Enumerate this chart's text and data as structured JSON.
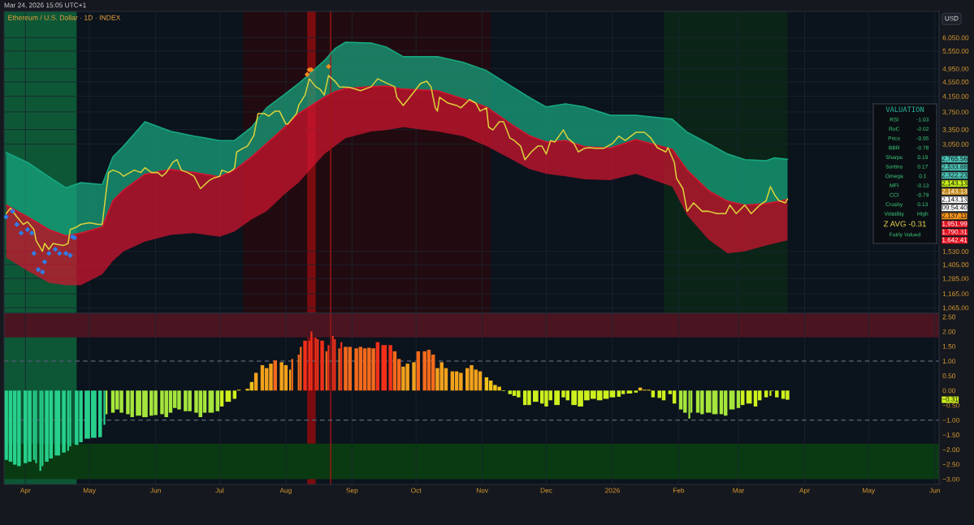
{
  "chart_data": [
    {
      "type": "line",
      "title": "Ethereum / U.S. Dollar · 1D · INDEX",
      "subtitle": "Mar 24, 2026 15:05 UTC+1",
      "ylabel": "USD",
      "log": true,
      "grid": true,
      "tick_labels": "y",
      "xlim": [
        "2025-03-22",
        "2026-06-03"
      ],
      "xticks": [
        {
          "value": "2025-04-01",
          "label": null
        },
        {
          "value": "2025-05-01",
          "label": null
        },
        {
          "value": "2025-06-01",
          "label": null
        },
        {
          "value": "2025-07-01",
          "label": null
        },
        {
          "value": "2025-08-01",
          "label": null
        },
        {
          "value": "2025-09-01",
          "label": null
        },
        {
          "value": "2025-10-01",
          "label": null
        },
        {
          "value": "2025-11-01",
          "label": null
        },
        {
          "value": "2025-12-01",
          "label": null
        },
        {
          "value": "2026-01-01",
          "label": null
        },
        {
          "value": "2026-02-01",
          "label": null
        },
        {
          "value": "2026-03-01",
          "label": null
        },
        {
          "value": "2026-04-01",
          "label": null
        },
        {
          "value": "2026-05-01",
          "label": null
        },
        {
          "value": "2026-06-01",
          "label": null
        }
      ],
      "ylim": [
        1028,
        7160
      ],
      "yticks": [
        {
          "value": 1065,
          "label": "1,065.00"
        },
        {
          "value": 1165,
          "label": "1,165.00"
        },
        {
          "value": 1285,
          "label": "1,285.00"
        },
        {
          "value": 1405,
          "label": "1,405.00"
        },
        {
          "value": 1530,
          "label": "1,530.00"
        },
        {
          "value": 3050,
          "label": "3,050.00"
        },
        {
          "value": 3350,
          "label": "3,350.00"
        },
        {
          "value": 3750,
          "label": "3,750.00"
        },
        {
          "value": 4150,
          "label": "4,150.00"
        },
        {
          "value": 4550,
          "label": "4,550.00"
        },
        {
          "value": 4950,
          "label": "4,950.00"
        },
        {
          "value": 5550,
          "label": "5,550.00"
        },
        {
          "value": 6050,
          "label": "6,050.00"
        }
      ],
      "series": [
        {
          "type": "line",
          "color": "#17a67f",
          "x": [
            "2025-03-23",
            "2025-04-02",
            "2025-04-12",
            "2025-04-20",
            "2025-04-27",
            "2025-05-07",
            "2025-05-12",
            "2025-05-17",
            "2025-05-27",
            "2025-06-08",
            "2025-06-19",
            "2025-07-01",
            "2025-07-08",
            "2025-07-16",
            "2025-07-23",
            "2025-07-31",
            "2025-08-07",
            "2025-08-19",
            "2025-08-24",
            "2025-08-29",
            "2025-09-10",
            "2025-09-17",
            "2025-09-25",
            "2025-10-11",
            "2025-10-23",
            "2025-11-03",
            "2025-11-15",
            "2025-11-23",
            "2025-12-01",
            "2025-12-10",
            "2025-12-19",
            "2025-12-31",
            "2026-01-12",
            "2026-01-29",
            "2026-02-05",
            "2026-02-15",
            "2026-02-24",
            "2026-03-04",
            "2026-03-14",
            "2026-03-18",
            "2026-03-24"
          ],
          "values": [
            2890,
            2710,
            2470,
            2300,
            2380,
            2350,
            2810,
            3010,
            3520,
            3310,
            3210,
            3120,
            3120,
            3400,
            3850,
            4180,
            4500,
            5210,
            5630,
            5870,
            5840,
            5690,
            5350,
            5350,
            5160,
            4890,
            4410,
            4120,
            3870,
            3950,
            3870,
            3670,
            3670,
            3580,
            3290,
            3060,
            2860,
            2760,
            2740,
            2790,
            2765.56
          ],
          "upper": [
            2890,
            2710,
            2470,
            2300,
            2380,
            2350,
            2810,
            3010,
            3520,
            3310,
            3210,
            3120,
            3120,
            3400,
            3850,
            4180,
            4500,
            5210,
            5630,
            5870,
            5840,
            5690,
            5350,
            5350,
            5160,
            4890,
            4410,
            4120,
            3870,
            3950,
            3870,
            3670,
            3670,
            3580,
            3290,
            3060,
            2860,
            2760,
            2740,
            2790,
            2765.56
          ],
          "lower": [
            2060,
            1910,
            1760,
            1690,
            1720,
            1790,
            2120,
            2270,
            2510,
            2590,
            2540,
            2470,
            2580,
            2810,
            3060,
            3380,
            3710,
            4120,
            4270,
            4360,
            4410,
            4430,
            4340,
            4300,
            4080,
            3870,
            3450,
            3220,
            3090,
            3120,
            3000,
            2970,
            3140,
            2950,
            2580,
            2260,
            2110,
            2060,
            2080,
            2100,
            2137.11
          ]
        },
        {
          "type": "line",
          "color": "#d3152f",
          "x": [
            "2025-03-23",
            "2025-04-02",
            "2025-04-12",
            "2025-04-20",
            "2025-04-27",
            "2025-05-07",
            "2025-05-12",
            "2025-05-17",
            "2025-05-27",
            "2025-06-08",
            "2025-06-19",
            "2025-07-01",
            "2025-07-08",
            "2025-07-16",
            "2025-07-23",
            "2025-07-31",
            "2025-08-07",
            "2025-08-19",
            "2025-08-24",
            "2025-08-29",
            "2025-09-10",
            "2025-09-17",
            "2025-09-25",
            "2025-10-11",
            "2025-10-23",
            "2025-11-03",
            "2025-11-15",
            "2025-11-23",
            "2025-12-01",
            "2025-12-10",
            "2025-12-19",
            "2025-12-31",
            "2026-01-12",
            "2026-01-29",
            "2026-02-05",
            "2026-02-15",
            "2026-02-24",
            "2026-03-04",
            "2026-03-14",
            "2026-03-18",
            "2026-03-24"
          ],
          "values": [
            2060,
            1910,
            1760,
            1690,
            1720,
            1790,
            2120,
            2270,
            2510,
            2590,
            2540,
            2470,
            2580,
            2810,
            3060,
            3380,
            3710,
            4120,
            4270,
            4360,
            4410,
            4430,
            4340,
            4300,
            4080,
            3870,
            3450,
            3220,
            3090,
            3120,
            3000,
            2970,
            3140,
            2950,
            2580,
            2260,
            2110,
            2060,
            2080,
            2100,
            2137.11
          ],
          "upper": [
            2060,
            1910,
            1760,
            1690,
            1720,
            1790,
            2120,
            2270,
            2510,
            2590,
            2540,
            2470,
            2580,
            2810,
            3060,
            3380,
            3710,
            4120,
            4270,
            4360,
            4410,
            4430,
            4340,
            4300,
            4080,
            3870,
            3450,
            3220,
            3090,
            3120,
            3000,
            2970,
            3140,
            2950,
            2580,
            2260,
            2110,
            2060,
            2080,
            2100,
            2137.11
          ],
          "lower": [
            1470,
            1350,
            1250,
            1230,
            1230,
            1320,
            1440,
            1530,
            1630,
            1700,
            1720,
            1680,
            1740,
            1880,
            1980,
            2200,
            2380,
            2860,
            3010,
            3170,
            3310,
            3340,
            3400,
            3310,
            3210,
            3010,
            2760,
            2600,
            2520,
            2480,
            2430,
            2420,
            2520,
            2320,
            1930,
            1650,
            1510,
            1530,
            1590,
            1610,
            1642.41
          ]
        },
        {
          "type": "line",
          "color": "#dcd23a",
          "x": [
            "2025-03-23",
            "2025-03-25",
            "2025-03-28",
            "2025-03-31",
            "2025-04-02",
            "2025-04-05",
            "2025-04-06",
            "2025-04-09",
            "2025-04-10",
            "2025-04-12",
            "2025-04-14",
            "2025-04-16",
            "2025-04-19",
            "2025-04-21",
            "2025-04-22",
            "2025-04-25",
            "2025-04-27",
            "2025-05-01",
            "2025-05-05",
            "2025-05-07",
            "2025-05-09",
            "2025-05-10",
            "2025-05-12",
            "2025-05-15",
            "2025-05-17",
            "2025-05-20",
            "2025-05-22",
            "2025-05-25",
            "2025-05-27",
            "2025-05-30",
            "2025-06-02",
            "2025-06-04",
            "2025-06-06",
            "2025-06-09",
            "2025-06-11",
            "2025-06-13",
            "2025-06-16",
            "2025-06-19",
            "2025-06-22",
            "2025-06-23",
            "2025-06-26",
            "2025-06-28",
            "2025-07-01",
            "2025-07-02",
            "2025-07-05",
            "2025-07-07",
            "2025-07-08",
            "2025-07-09",
            "2025-07-12",
            "2025-07-14",
            "2025-07-17",
            "2025-07-19",
            "2025-07-22",
            "2025-07-24",
            "2025-07-27",
            "2025-07-29",
            "2025-08-01",
            "2025-08-02",
            "2025-08-05",
            "2025-08-06",
            "2025-08-07",
            "2025-08-10",
            "2025-08-12",
            "2025-08-15",
            "2025-08-17",
            "2025-08-19",
            "2025-08-21",
            "2025-08-24",
            "2025-08-26",
            "2025-08-31",
            "2025-09-05",
            "2025-09-10",
            "2025-09-13",
            "2025-09-17",
            "2025-09-21",
            "2025-09-22",
            "2025-09-25",
            "2025-09-28",
            "2025-10-01",
            "2025-10-03",
            "2025-10-06",
            "2025-10-08",
            "2025-10-10",
            "2025-10-11",
            "2025-10-12",
            "2025-10-16",
            "2025-10-20",
            "2025-10-22",
            "2025-10-26",
            "2025-10-29",
            "2025-10-31",
            "2025-11-03",
            "2025-11-04",
            "2025-11-06",
            "2025-11-09",
            "2025-11-11",
            "2025-11-14",
            "2025-11-16",
            "2025-11-19",
            "2025-11-21",
            "2025-11-24",
            "2025-11-27",
            "2025-11-29",
            "2025-12-01",
            "2025-12-03",
            "2025-12-05",
            "2025-12-09",
            "2025-12-11",
            "2025-12-14",
            "2025-12-16",
            "2025-12-19",
            "2025-12-21",
            "2025-12-24",
            "2025-12-28",
            "2026-01-01",
            "2026-01-04",
            "2026-01-07",
            "2026-01-12",
            "2026-01-16",
            "2026-01-19",
            "2026-01-22",
            "2026-01-26",
            "2026-01-27",
            "2026-01-30",
            "2026-01-31",
            "2026-02-03",
            "2026-02-05",
            "2026-02-08",
            "2026-02-12",
            "2026-02-15",
            "2026-02-19",
            "2026-02-23",
            "2026-02-25",
            "2026-02-28",
            "2026-03-04",
            "2026-03-07",
            "2026-03-11",
            "2026-03-14",
            "2026-03-16",
            "2026-03-18",
            "2026-03-20",
            "2026-03-23",
            "2026-03-24"
          ],
          "values": [
            1950,
            2020,
            1910,
            1820,
            1850,
            1760,
            1640,
            1530,
            1610,
            1550,
            1610,
            1600,
            1590,
            1610,
            1760,
            1790,
            1820,
            1840,
            1820,
            1820,
            2290,
            2540,
            2580,
            2540,
            2480,
            2540,
            2580,
            2540,
            2620,
            2540,
            2540,
            2480,
            2540,
            2710,
            2760,
            2580,
            2540,
            2480,
            2290,
            2320,
            2410,
            2450,
            2480,
            2580,
            2540,
            2580,
            2620,
            2900,
            2970,
            3010,
            3220,
            3710,
            3710,
            3650,
            3770,
            3770,
            3470,
            3470,
            3650,
            3710,
            3910,
            4180,
            4640,
            4410,
            4340,
            4180,
            4740,
            4570,
            4410,
            4390,
            4300,
            4410,
            4640,
            4520,
            4410,
            4120,
            3910,
            4120,
            4340,
            4500,
            4570,
            4410,
            3850,
            3770,
            4120,
            3970,
            3910,
            3850,
            4060,
            3970,
            3770,
            3850,
            3400,
            3340,
            3520,
            3520,
            3170,
            3120,
            3010,
            2760,
            2900,
            3010,
            3010,
            2860,
            3120,
            3090,
            3340,
            3170,
            3060,
            2900,
            2970,
            2980,
            2970,
            2970,
            3060,
            3210,
            3120,
            3290,
            3290,
            3170,
            2980,
            2900,
            2980,
            2710,
            2450,
            2290,
            1980,
            2090,
            1980,
            1980,
            1950,
            1950,
            2060,
            1950,
            2060,
            1950,
            2060,
            2120,
            2320,
            2200,
            2120,
            2090,
            2143.13
          ]
        },
        {
          "type": "scatter",
          "marker": "diamond",
          "color": "#2e7de9",
          "x": [
            "2025-03-23",
            "2025-03-26",
            "2025-03-28",
            "2025-03-30",
            "2025-04-02",
            "2025-04-04",
            "2025-04-05",
            "2025-04-07",
            "2025-04-09",
            "2025-04-10",
            "2025-04-12",
            "2025-04-15",
            "2025-04-17",
            "2025-04-20",
            "2025-04-22",
            "2025-04-23",
            "2025-04-24"
          ],
          "values": [
            1910,
            1980,
            1820,
            1720,
            1760,
            1720,
            1510,
            1360,
            1340,
            1430,
            1510,
            1550,
            1510,
            1510,
            1490,
            1680,
            1670
          ]
        },
        {
          "type": "scatter",
          "marker": "diamond",
          "color": "#f28c1c",
          "x": [
            "2025-08-11",
            "2025-08-12",
            "2025-08-13",
            "2025-08-21"
          ],
          "values": [
            4770,
            4920,
            4920,
            5020
          ]
        }
      ],
      "bands": [
        {
          "axis": "x",
          "from": "2025-03-22",
          "to": "2025-04-25",
          "color": "#0d5736"
        },
        {
          "axis": "x",
          "from": "2025-07-12",
          "to": "2025-11-05",
          "color": "#220b10"
        },
        {
          "axis": "x",
          "from": "2025-08-11",
          "to": "2025-08-15",
          "color": "#7a0c10"
        },
        {
          "axis": "x",
          "from": "2026-01-25",
          "to": "2026-03-24",
          "color": "#0a2417"
        }
      ],
      "ref_lines": [
        {
          "axis": "x",
          "value": "2025-08-22",
          "color": "#a31515"
        }
      ],
      "annotations": [
        "2,765.56",
        "2,533.88",
        "2,322.23",
        "2,143.13",
        "2,143.13",
        "2,143.13",
        "09:54:40",
        "2,137.11",
        "1,951.99",
        "1,790.31",
        "1,642.41"
      ]
    },
    {
      "type": "bar",
      "grid": "x",
      "xlim": [
        "2025-03-22",
        "2026-06-03"
      ],
      "xticks": [
        {
          "value": "2025-04-01",
          "label": "Apr"
        },
        {
          "value": "2025-05-01",
          "label": "May"
        },
        {
          "value": "2025-06-01",
          "label": "Jun"
        },
        {
          "value": "2025-07-01",
          "label": "Jul"
        },
        {
          "value": "2025-08-01",
          "label": "Aug"
        },
        {
          "value": "2025-09-01",
          "label": "Sep"
        },
        {
          "value": "2025-10-01",
          "label": "Oct"
        },
        {
          "value": "2025-11-01",
          "label": "Nov"
        },
        {
          "value": "2025-12-01",
          "label": "Dec"
        },
        {
          "value": "2026-01-01",
          "label": "2026"
        },
        {
          "value": "2026-02-01",
          "label": "Feb"
        },
        {
          "value": "2026-03-01",
          "label": "Mar"
        },
        {
          "value": "2026-04-01",
          "label": "Apr"
        },
        {
          "value": "2026-05-01",
          "label": "May"
        },
        {
          "value": "2026-06-01",
          "label": "Jun"
        }
      ],
      "ylim": [
        -3.18,
        2.62
      ],
      "yticks": [
        {
          "value": -3.0,
          "label": "−3.00"
        },
        {
          "value": -2.5,
          "label": "−2.50"
        },
        {
          "value": -2.0,
          "label": "−2.00"
        },
        {
          "value": -1.5,
          "label": "−1.50"
        },
        {
          "value": -1.0,
          "label": "−1.00"
        },
        {
          "value": -0.5,
          "label": "−0.50"
        },
        {
          "value": 0,
          "label": "0.00"
        },
        {
          "value": 0.5,
          "label": "0.50"
        },
        {
          "value": 1.0,
          "label": "1.00"
        },
        {
          "value": 1.5,
          "label": "1.50"
        },
        {
          "value": 2.0,
          "label": "2.00"
        },
        {
          "value": 2.5,
          "label": "2.50"
        }
      ],
      "x": [
        "2025-03-23",
        "2025-03-25",
        "2025-03-27",
        "2025-03-29",
        "2025-04-01",
        "2025-04-03",
        "2025-04-05",
        "2025-04-06",
        "2025-04-08",
        "2025-04-09",
        "2025-04-11",
        "2025-04-13",
        "2025-04-16",
        "2025-04-19",
        "2025-04-21",
        "2025-04-22",
        "2025-04-25",
        "2025-04-27",
        "2025-04-30",
        "2025-05-03",
        "2025-05-06",
        "2025-05-08",
        "2025-05-09",
        "2025-05-12",
        "2025-05-14",
        "2025-05-16",
        "2025-05-19",
        "2025-05-21",
        "2025-05-24",
        "2025-05-27",
        "2025-05-30",
        "2025-06-01",
        "2025-06-04",
        "2025-06-06",
        "2025-06-08",
        "2025-06-10",
        "2025-06-12",
        "2025-06-15",
        "2025-06-17",
        "2025-06-20",
        "2025-06-22",
        "2025-06-24",
        "2025-06-27",
        "2025-06-30",
        "2025-07-02",
        "2025-07-05",
        "2025-07-08",
        "2025-07-10",
        "2025-07-14",
        "2025-07-16",
        "2025-07-18",
        "2025-07-21",
        "2025-07-23",
        "2025-07-25",
        "2025-07-27",
        "2025-07-30",
        "2025-08-01",
        "2025-08-03",
        "2025-08-04",
        "2025-08-07",
        "2025-08-08",
        "2025-08-10",
        "2025-08-12",
        "2025-08-13",
        "2025-08-15",
        "2025-08-16",
        "2025-08-18",
        "2025-08-20",
        "2025-08-21",
        "2025-08-23",
        "2025-08-24",
        "2025-08-26",
        "2025-08-27",
        "2025-08-29",
        "2025-08-31",
        "2025-09-03",
        "2025-09-05",
        "2025-09-07",
        "2025-09-09",
        "2025-09-11",
        "2025-09-13",
        "2025-09-16",
        "2025-09-19",
        "2025-09-21",
        "2025-09-23",
        "2025-09-25",
        "2025-09-27",
        "2025-09-30",
        "2025-10-02",
        "2025-10-05",
        "2025-10-07",
        "2025-10-09",
        "2025-10-11",
        "2025-10-13",
        "2025-10-15",
        "2025-10-18",
        "2025-10-20",
        "2025-10-22",
        "2025-10-25",
        "2025-10-27",
        "2025-10-29",
        "2025-10-31",
        "2025-11-03",
        "2025-11-05",
        "2025-11-07",
        "2025-11-09",
        "2025-11-11",
        "2025-11-14",
        "2025-11-16",
        "2025-11-18",
        "2025-11-21",
        "2025-11-23",
        "2025-11-26",
        "2025-11-29",
        "2025-12-01",
        "2025-12-03",
        "2025-12-06",
        "2025-12-09",
        "2025-12-11",
        "2025-12-14",
        "2025-12-17",
        "2025-12-20",
        "2025-12-23",
        "2025-12-26",
        "2025-12-29",
        "2026-01-01",
        "2026-01-04",
        "2026-01-06",
        "2026-01-09",
        "2026-01-12",
        "2026-01-14",
        "2026-01-16",
        "2026-01-18",
        "2026-01-20",
        "2026-01-23",
        "2026-01-25",
        "2026-01-28",
        "2026-01-30",
        "2026-02-02",
        "2026-02-04",
        "2026-02-06",
        "2026-02-07",
        "2026-02-10",
        "2026-02-12",
        "2026-02-15",
        "2026-02-18",
        "2026-02-21",
        "2026-02-23",
        "2026-02-26",
        "2026-03-01",
        "2026-03-03",
        "2026-03-06",
        "2026-03-09",
        "2026-03-11",
        "2026-03-14",
        "2026-03-16",
        "2026-03-17",
        "2026-03-19",
        "2026-03-22",
        "2026-03-24"
      ],
      "values": [
        -2.35,
        -2.41,
        -2.51,
        -2.56,
        -2.46,
        -2.41,
        -2.35,
        -2.46,
        -2.72,
        -2.56,
        -2.41,
        -2.3,
        -2.2,
        -2.1,
        -2.04,
        -1.89,
        -1.84,
        -1.75,
        -1.63,
        -1.6,
        -1.58,
        -1.16,
        -0.8,
        -0.75,
        -0.64,
        -0.75,
        -0.8,
        -0.9,
        -0.85,
        -0.9,
        -0.85,
        -0.83,
        -0.8,
        -0.9,
        -0.75,
        -0.59,
        -0.64,
        -0.7,
        -0.7,
        -0.75,
        -0.9,
        -0.75,
        -0.75,
        -0.7,
        -0.54,
        -0.38,
        -0.28,
        0.03,
        0.06,
        0.29,
        0.6,
        0.86,
        0.76,
        0.91,
        1.02,
        0.96,
        0.86,
        0.71,
        1.07,
        1.22,
        1.48,
        1.69,
        1.69,
        2.0,
        1.79,
        1.74,
        1.69,
        1.33,
        1.54,
        1.85,
        1.74,
        1.43,
        1.64,
        1.48,
        1.48,
        1.43,
        1.48,
        1.43,
        1.45,
        1.43,
        1.64,
        1.54,
        1.54,
        1.33,
        1.07,
        0.81,
        0.91,
        0.96,
        1.33,
        1.33,
        1.38,
        1.22,
        0.76,
        0.96,
        0.76,
        0.65,
        0.65,
        0.6,
        0.76,
        0.86,
        0.71,
        0.65,
        0.45,
        0.34,
        0.19,
        0.13,
        -0.02,
        -0.12,
        -0.18,
        -0.23,
        -0.49,
        -0.49,
        -0.38,
        -0.44,
        -0.54,
        -0.33,
        -0.49,
        -0.23,
        -0.33,
        -0.49,
        -0.54,
        -0.33,
        -0.28,
        -0.33,
        -0.28,
        -0.23,
        -0.21,
        -0.12,
        -0.1,
        -0.07,
        0.1,
        0.03,
        0.03,
        -0.23,
        -0.25,
        -0.33,
        -0.12,
        -0.44,
        -0.64,
        -0.75,
        -0.95,
        -0.75,
        -0.75,
        -0.8,
        -0.75,
        -0.8,
        -0.8,
        -0.85,
        -0.64,
        -0.59,
        -0.49,
        -0.44,
        -0.54,
        -0.33,
        -0.23,
        -0.18,
        -0.02,
        -0.23,
        -0.28,
        -0.31
      ],
      "colors": [
        "#27d08c",
        "#27d08c",
        "#27d08c",
        "#27d08c",
        "#27d08c",
        "#27d08c",
        "#27d08c",
        "#27d08c",
        "#27d08c",
        "#27d08c",
        "#27d08c",
        "#27d08c",
        "#27d08c",
        "#27d08c",
        "#27d08c",
        "#27d08c",
        "#27d08c",
        "#27d08c",
        "#27d08c",
        "#27d08c",
        "#27d08c",
        "#27d08c",
        "#a6e63c",
        "#a6e63c",
        "#a6e63c",
        "#a6e63c",
        "#a6e63c",
        "#a6e63c",
        "#a6e63c",
        "#a6e63c",
        "#a6e63c",
        "#a6e63c",
        "#a6e63c",
        "#a6e63c",
        "#a6e63c",
        "#a6e63c",
        "#a6e63c",
        "#a6e63c",
        "#a6e63c",
        "#a6e63c",
        "#a6e63c",
        "#a6e63c",
        "#a6e63c",
        "#a6e63c",
        "#cdf01e",
        "#cdf01e",
        "#cdf01e",
        "#f0c21a",
        "#f0c21a",
        "#f0c21a",
        "#f2a11c",
        "#f2a11c",
        "#f2a11c",
        "#f2a11c",
        "#f46a1c",
        "#f2a11c",
        "#f2a11c",
        "#f2a11c",
        "#f46a1c",
        "#f46a1c",
        "#f46a1c",
        "#f2301a",
        "#f2301a",
        "#f2301a",
        "#f2301a",
        "#f2301a",
        "#f2301a",
        "#f46a1c",
        "#f2301a",
        "#f2301a",
        "#f2301a",
        "#f46a1c",
        "#f2301a",
        "#f46a1c",
        "#f46a1c",
        "#f46a1c",
        "#f46a1c",
        "#f46a1c",
        "#f46a1c",
        "#f46a1c",
        "#f2301a",
        "#f2301a",
        "#f2301a",
        "#f46a1c",
        "#f46a1c",
        "#f2a11c",
        "#f2a11c",
        "#f2a11c",
        "#f46a1c",
        "#f46a1c",
        "#f46a1c",
        "#f46a1c",
        "#f2a11c",
        "#f2a11c",
        "#f2a11c",
        "#f2a11c",
        "#f2a11c",
        "#f2a11c",
        "#f2a11c",
        "#f2a11c",
        "#f2a11c",
        "#f2a11c",
        "#f0c21a",
        "#f0c21a",
        "#f0c21a",
        "#f0c21a",
        "#cdf01e",
        "#cdf01e",
        "#cdf01e",
        "#cdf01e",
        "#cdf01e",
        "#cdf01e",
        "#cdf01e",
        "#cdf01e",
        "#cdf01e",
        "#cdf01e",
        "#cdf01e",
        "#cdf01e",
        "#cdf01e",
        "#cdf01e",
        "#cdf01e",
        "#cdf01e",
        "#cdf01e",
        "#cdf01e",
        "#cdf01e",
        "#cdf01e",
        "#cdf01e",
        "#cdf01e",
        "#cdf01e",
        "#cdf01e",
        "#f0c21a",
        "#f0c21a",
        "#f0c21a",
        "#cdf01e",
        "#cdf01e",
        "#cdf01e",
        "#cdf01e",
        "#cdf01e",
        "#a6e63c",
        "#a6e63c",
        "#a6e63c",
        "#a6e63c",
        "#a6e63c",
        "#a6e63c",
        "#a6e63c",
        "#a6e63c",
        "#a6e63c",
        "#a6e63c",
        "#a6e63c",
        "#a6e63c",
        "#cdf01e",
        "#cdf01e",
        "#cdf01e",
        "#cdf01e",
        "#cdf01e",
        "#cdf01e",
        "#cdf01e",
        "#cdf01e",
        "#cdf01e",
        "#cdf01e"
      ],
      "bands": [
        {
          "axis": "x",
          "from": "2025-03-22",
          "to": "2025-04-25",
          "color": "#0d5736"
        },
        {
          "axis": "x",
          "from": "2025-08-11",
          "to": "2025-08-15",
          "color": "#7a0c10"
        },
        {
          "axis": "y",
          "from": 1.8,
          "to": 2.62,
          "color": "#4a1521"
        },
        {
          "axis": "y",
          "from": -3.0,
          "to": -1.8,
          "color": "#0a3a12"
        }
      ],
      "ref_lines": [
        {
          "axis": "x",
          "value": "2025-08-22",
          "color": "#a31515"
        },
        {
          "axis": "y",
          "value": 1.0,
          "color": "#4f5a6a",
          "line_style": "dashed"
        },
        {
          "axis": "y",
          "value": -1.0,
          "color": "#4f5a6a",
          "line_style": "dashed"
        }
      ],
      "annotations": [
        "−0.31"
      ]
    },
    {
      "type": "other",
      "title": "VALUATION",
      "categories": [
        "RSI",
        "RoC",
        "Price",
        "BBR",
        "Sharpe",
        "Sortino",
        "Omega",
        "MFI",
        "CCI",
        "Crosby",
        "Volatility"
      ],
      "value_labels": [
        "-1.03",
        "-0.02",
        "-0.95",
        "-0.78",
        "0.19",
        "0.17",
        "0.1",
        "-0.13",
        "-0.79",
        "0.13",
        "High"
      ],
      "annotations": [
        "Z AVG -0.31",
        "Fairly Valued"
      ]
    }
  ]
}
